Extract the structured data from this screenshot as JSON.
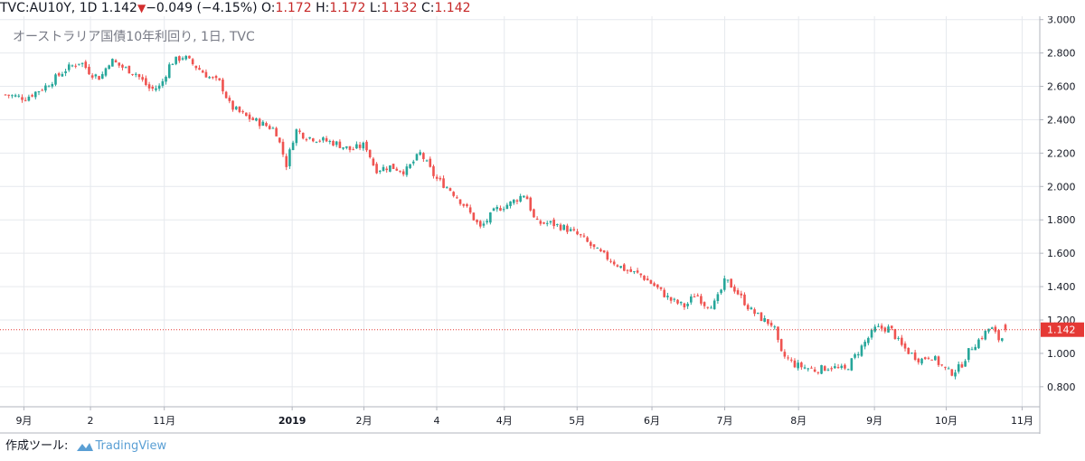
{
  "header": {
    "symbol": "TVC:AU10Y, 1D",
    "last": "1.142",
    "arrow": "▼",
    "change": "−0.049 (−4.15%)",
    "o_label": "O:",
    "o": "1.172",
    "h_label": "H:",
    "h": "1.172",
    "l_label": "L:",
    "l": "1.132",
    "c_label": "C:",
    "c": "1.142"
  },
  "footer": {
    "prefix": "作成ツール:",
    "brand": "TradingView"
  },
  "colors": {
    "up": "#26a69a",
    "down": "#ef5350",
    "grid": "#e6e9ee",
    "price_line": "#e53935",
    "text": "#131722"
  },
  "chart_data": {
    "type": "candlestick",
    "title": "オーストラリア国債10年利回り, 1日, TVC",
    "y_ticks": [
      "3.000",
      "2.800",
      "2.600",
      "2.400",
      "2.200",
      "2.000",
      "1.800",
      "1.600",
      "1.400",
      "1.200",
      "1.000",
      "0.800"
    ],
    "ylim": [
      0.68,
      3.02
    ],
    "current_price": 1.142,
    "current_price_label": "1.142",
    "x_labels": [
      "9月",
      "2",
      "11月",
      "2019",
      "2月",
      "4",
      "4月",
      "5月",
      "6月",
      "7月",
      "8月",
      "9月",
      "10月",
      "11月"
    ],
    "x_label_pos": [
      0.023,
      0.087,
      0.158,
      0.281,
      0.35,
      0.42,
      0.485,
      0.555,
      0.627,
      0.697,
      0.768,
      0.841,
      0.91,
      0.983
    ],
    "close_path": [
      [
        0.0,
        2.55
      ],
      [
        0.02,
        2.53
      ],
      [
        0.04,
        2.6
      ],
      [
        0.06,
        2.7
      ],
      [
        0.075,
        2.75
      ],
      [
        0.085,
        2.68
      ],
      [
        0.095,
        2.65
      ],
      [
        0.105,
        2.76
      ],
      [
        0.115,
        2.72
      ],
      [
        0.13,
        2.68
      ],
      [
        0.145,
        2.58
      ],
      [
        0.155,
        2.6
      ],
      [
        0.165,
        2.74
      ],
      [
        0.178,
        2.78
      ],
      [
        0.19,
        2.72
      ],
      [
        0.205,
        2.65
      ],
      [
        0.215,
        2.62
      ],
      [
        0.225,
        2.48
      ],
      [
        0.24,
        2.42
      ],
      [
        0.255,
        2.38
      ],
      [
        0.27,
        2.34
      ],
      [
        0.281,
        2.13
      ],
      [
        0.29,
        2.34
      ],
      [
        0.3,
        2.3
      ],
      [
        0.315,
        2.28
      ],
      [
        0.33,
        2.26
      ],
      [
        0.345,
        2.22
      ],
      [
        0.36,
        2.25
      ],
      [
        0.37,
        2.1
      ],
      [
        0.385,
        2.12
      ],
      [
        0.4,
        2.09
      ],
      [
        0.415,
        2.2
      ],
      [
        0.43,
        2.05
      ],
      [
        0.445,
        1.98
      ],
      [
        0.46,
        1.88
      ],
      [
        0.475,
        1.75
      ],
      [
        0.49,
        1.86
      ],
      [
        0.505,
        1.9
      ],
      [
        0.52,
        1.96
      ],
      [
        0.53,
        1.78
      ],
      [
        0.545,
        1.78
      ],
      [
        0.56,
        1.75
      ],
      [
        0.575,
        1.7
      ],
      [
        0.59,
        1.62
      ],
      [
        0.605,
        1.56
      ],
      [
        0.62,
        1.5
      ],
      [
        0.635,
        1.47
      ],
      [
        0.65,
        1.4
      ],
      [
        0.665,
        1.32
      ],
      [
        0.68,
        1.28
      ],
      [
        0.69,
        1.36
      ],
      [
        0.7,
        1.29
      ],
      [
        0.71,
        1.3
      ],
      [
        0.72,
        1.44
      ],
      [
        0.73,
        1.38
      ],
      [
        0.745,
        1.26
      ],
      [
        0.758,
        1.2
      ],
      [
        0.768,
        1.17
      ],
      [
        0.775,
        1.0
      ],
      [
        0.79,
        0.93
      ],
      [
        0.81,
        0.9
      ],
      [
        0.825,
        0.92
      ],
      [
        0.84,
        0.9
      ],
      [
        0.855,
        1.03
      ],
      [
        0.87,
        1.15
      ],
      [
        0.885,
        1.15
      ],
      [
        0.895,
        1.05
      ],
      [
        0.905,
        1.0
      ],
      [
        0.915,
        0.96
      ],
      [
        0.925,
        0.99
      ],
      [
        0.935,
        0.93
      ],
      [
        0.945,
        0.88
      ],
      [
        0.955,
        0.92
      ],
      [
        0.965,
        1.03
      ],
      [
        0.975,
        1.09
      ],
      [
        0.985,
        1.16
      ],
      [
        0.995,
        1.07
      ],
      [
        1.0,
        1.142
      ]
    ]
  }
}
